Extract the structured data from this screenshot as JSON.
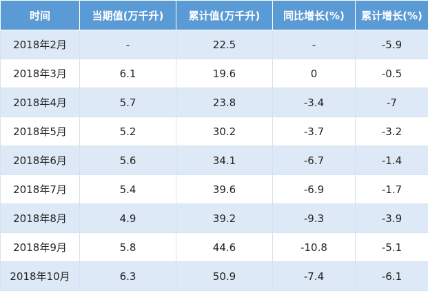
{
  "table": {
    "headers": [
      "时间",
      "当期值(万千升)",
      "累计值(万千升)",
      "同比增长(%)",
      "累计增长(%)"
    ],
    "rows": [
      [
        "2018年2月",
        "-",
        "22.5",
        "-",
        "-5.9"
      ],
      [
        "2018年3月",
        "6.1",
        "19.6",
        "0",
        "-0.5"
      ],
      [
        "2018年4月",
        "5.7",
        "23.8",
        "-3.4",
        "-7"
      ],
      [
        "2018年5月",
        "5.2",
        "30.2",
        "-3.7",
        "-3.2"
      ],
      [
        "2018年6月",
        "5.6",
        "34.1",
        "-6.7",
        "-1.4"
      ],
      [
        "2018年7月",
        "5.4",
        "39.6",
        "-6.9",
        "-1.7"
      ],
      [
        "2018年8月",
        "4.9",
        "39.2",
        "-9.3",
        "-3.9"
      ],
      [
        "2018年9月",
        "5.8",
        "44.6",
        "-10.8",
        "-5.1"
      ],
      [
        "2018年10月",
        "6.3",
        "50.9",
        "-7.4",
        "-6.1"
      ]
    ]
  }
}
